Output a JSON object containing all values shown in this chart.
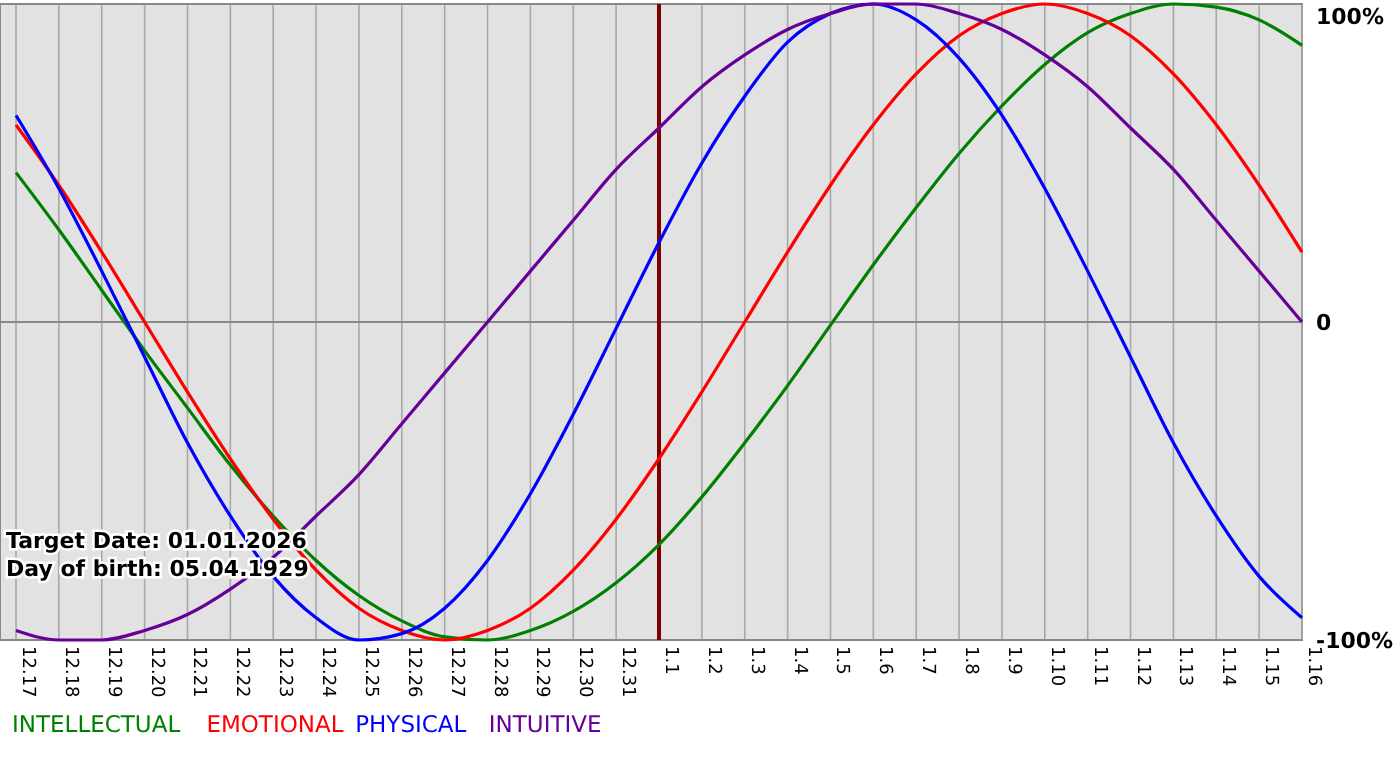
{
  "chart_data": {
    "type": "line",
    "categories": [
      "12.17",
      "12.18",
      "12.19",
      "12.20",
      "12.21",
      "12.22",
      "12.23",
      "12.24",
      "12.25",
      "12.26",
      "12.27",
      "12.28",
      "12.29",
      "12.30",
      "12.31",
      "1.1",
      "1.2",
      "1.3",
      "1.4",
      "1.5",
      "1.6",
      "1.7",
      "1.8",
      "1.9",
      "1.10",
      "1.11",
      "1.12",
      "1.13",
      "1.14",
      "1.15",
      "1.16"
    ],
    "series": [
      {
        "name": "INTELLECTUAL",
        "color": "#008000",
        "values": [
          47,
          29,
          10,
          -9,
          -27,
          -45,
          -61,
          -75,
          -86,
          -94,
          -99,
          -100,
          -97,
          -91,
          -82,
          -70,
          -55,
          -38,
          -20,
          -1,
          18,
          36,
          53,
          68,
          81,
          91,
          97,
          100,
          99,
          95,
          87
        ]
      },
      {
        "name": "EMOTIONAL",
        "color": "#ff0000",
        "values": [
          62,
          43,
          22,
          0,
          -22,
          -43,
          -62,
          -78,
          -90,
          -97,
          -100,
          -97,
          -90,
          -78,
          -62,
          -43,
          -22,
          0,
          22,
          43,
          62,
          78,
          90,
          97,
          100,
          97,
          90,
          78,
          62,
          43,
          22
        ]
      },
      {
        "name": "PHYSICAL",
        "color": "#0000ff",
        "values": [
          65,
          42,
          16,
          -11,
          -38,
          -61,
          -80,
          -93,
          -100,
          -98,
          -90,
          -75,
          -54,
          -29,
          -2,
          25,
          50,
          71,
          88,
          97,
          100,
          95,
          83,
          65,
          42,
          16,
          -11,
          -38,
          -61,
          -80,
          -93
        ]
      },
      {
        "name": "INTUITIVE",
        "color": "#660099",
        "values": [
          -97,
          -100,
          -100,
          -97,
          -92,
          -84,
          -74,
          -61,
          -48,
          -32,
          -16,
          0,
          16,
          32,
          48,
          61,
          74,
          84,
          92,
          97,
          100,
          100,
          97,
          92,
          84,
          74,
          61,
          48,
          32,
          16,
          0
        ]
      }
    ],
    "ylim": [
      -100,
      100
    ],
    "yticks": [
      {
        "value": -100,
        "label": "-100%"
      },
      0,
      {
        "value": 100,
        "label": "100%"
      }
    ],
    "grid": true,
    "legend": "bottom left",
    "ref_lines": [
      {
        "axis": "x",
        "value": "1.1",
        "color": "#800000"
      }
    ],
    "annotations": [
      "Target Date: 01.01.2026",
      "Day of birth: 05.04.1929"
    ]
  }
}
